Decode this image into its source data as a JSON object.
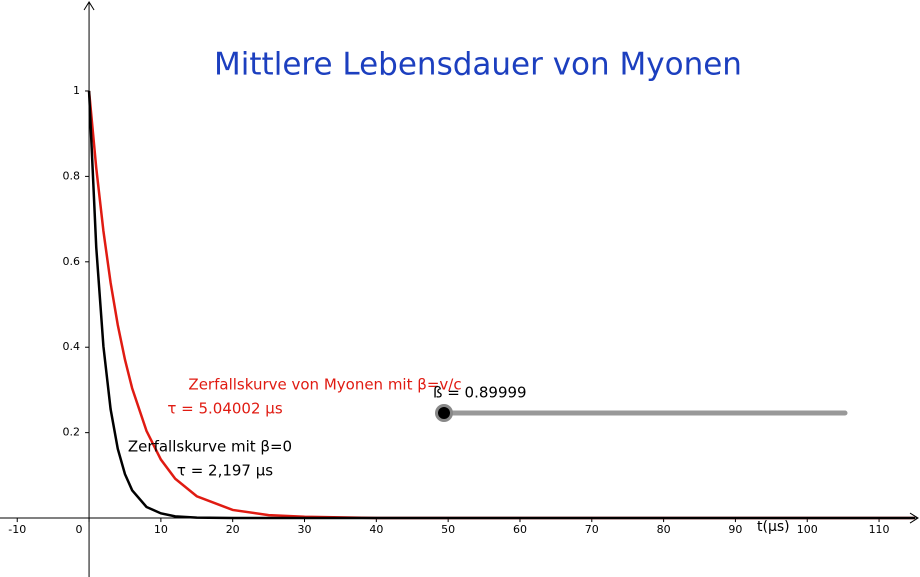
{
  "chart_data": {
    "type": "line",
    "title": "Mittlere Lebensdauer von Myonen",
    "title_color": "#1c3fbf",
    "xlabel": "t(μs)",
    "x": [
      0,
      1,
      2,
      3,
      4,
      5,
      6,
      8,
      10,
      12,
      15,
      20,
      25,
      30,
      40,
      50,
      60,
      70,
      80,
      90,
      100,
      110,
      115
    ],
    "series": [
      {
        "name": "Zerfallskurve von Myonen mit β=v/c",
        "color": "#e01b12",
        "values": [
          1,
          0.82,
          0.672,
          0.551,
          0.452,
          0.371,
          0.304,
          0.204,
          0.137,
          0.092,
          0.051,
          0.019,
          0.007,
          0.003,
          0,
          0,
          0,
          0,
          0,
          0,
          0,
          0,
          0
        ]
      },
      {
        "name": "Zerfallskurve mit β=0",
        "color": "#000000",
        "values": [
          1,
          0.634,
          0.402,
          0.255,
          0.162,
          0.103,
          0.065,
          0.026,
          0.011,
          0.004,
          0.001,
          0,
          0,
          0,
          0,
          0,
          0,
          0,
          0,
          0,
          0,
          0,
          0
        ]
      }
    ],
    "annotations": [
      {
        "text": "τ = 5.04002 μs",
        "color": "#e01b12"
      },
      {
        "text": "τ = 2,197 μs",
        "color": "#000000"
      }
    ],
    "slider": {
      "label": "ß = 0.89999"
    },
    "xlim": [
      -12.4,
      115.7
    ],
    "ylim": [
      -0.138,
      1.213
    ],
    "xticks": [
      -10,
      0,
      10,
      20,
      30,
      40,
      50,
      60,
      70,
      80,
      90,
      100,
      110
    ],
    "yticks": [
      0.2,
      0.4,
      0.6,
      0.8,
      1
    ]
  }
}
